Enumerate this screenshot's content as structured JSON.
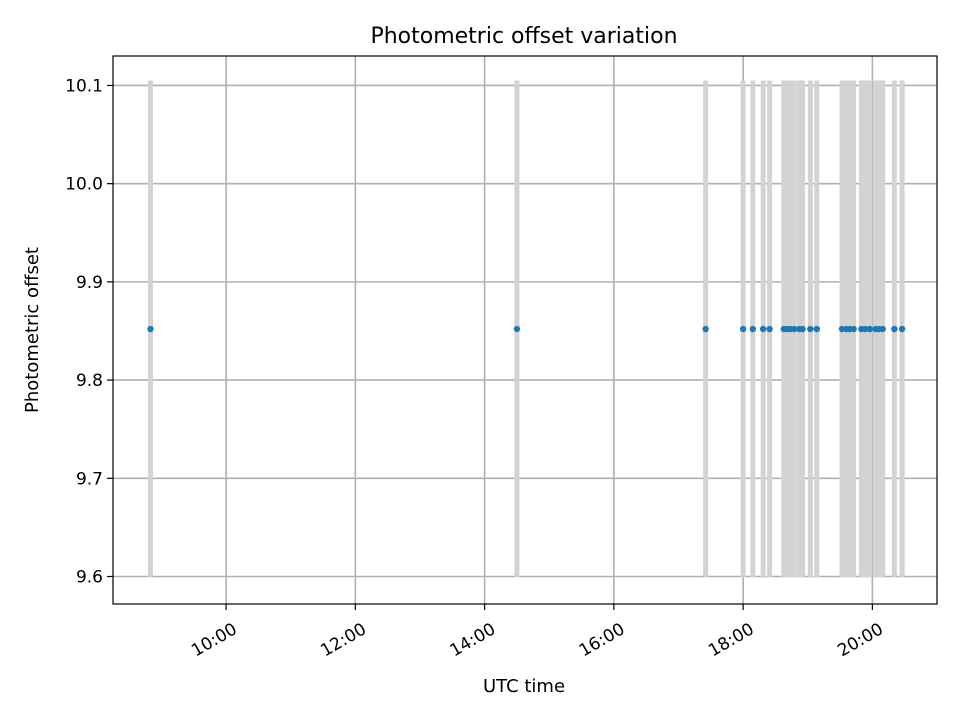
{
  "chart_data": {
    "type": "scatter",
    "title": "Photometric offset variation",
    "xlabel": "UTC time",
    "ylabel": "Photometric offset",
    "xlim_hours": [
      8.25,
      21.0
    ],
    "ylim": [
      9.572,
      10.13
    ],
    "grid": true,
    "x_ticks": [
      {
        "hour": 10,
        "label": "10:00"
      },
      {
        "hour": 12,
        "label": "12:00"
      },
      {
        "hour": 14,
        "label": "14:00"
      },
      {
        "hour": 16,
        "label": "16:00"
      },
      {
        "hour": 18,
        "label": "18:00"
      },
      {
        "hour": 20,
        "label": "20:00"
      }
    ],
    "y_ticks": [
      {
        "value": 9.6,
        "label": "9.6"
      },
      {
        "value": 9.7,
        "label": "9.7"
      },
      {
        "value": 9.8,
        "label": "9.8"
      },
      {
        "value": 9.9,
        "label": "9.9"
      },
      {
        "value": 10.0,
        "label": "10.0"
      },
      {
        "value": 10.1,
        "label": "10.1"
      }
    ],
    "series": [
      {
        "marker_color": "#1f77b4",
        "errorbar_color": "#d3d3d3",
        "x_hours": [
          8.83,
          14.5,
          17.42,
          18.0,
          18.15,
          18.31,
          18.41,
          18.63,
          18.68,
          18.73,
          18.79,
          18.87,
          18.92,
          19.04,
          19.14,
          19.53,
          19.6,
          19.65,
          19.71,
          19.83,
          19.89,
          19.96,
          20.05,
          20.1,
          20.16,
          20.34,
          20.46
        ],
        "y": [
          9.852,
          9.852,
          9.852,
          9.852,
          9.852,
          9.852,
          9.852,
          9.852,
          9.852,
          9.852,
          9.852,
          9.852,
          9.852,
          9.852,
          9.852,
          9.852,
          9.852,
          9.852,
          9.852,
          9.852,
          9.852,
          9.852,
          9.852,
          9.852,
          9.852,
          9.852,
          9.852
        ],
        "y_err": 0.253
      }
    ]
  }
}
